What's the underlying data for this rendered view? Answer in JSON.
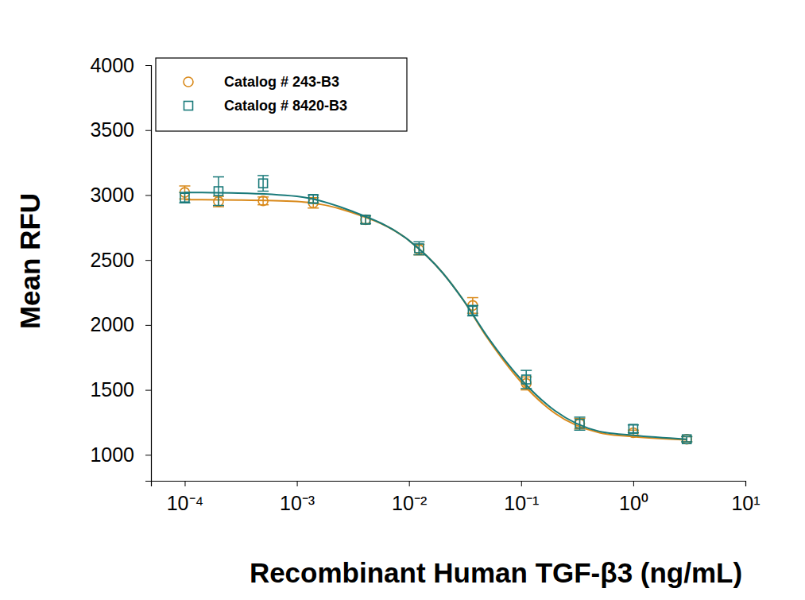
{
  "chart_data": {
    "type": "scatter",
    "x_label": "Recombinant Human TGF-β3 (ng/mL)",
    "y_label": "Mean RFU",
    "log": "x",
    "legend": "top-left",
    "x": [
      0.0001,
      0.0002,
      0.0005,
      0.0014,
      0.0041,
      0.0123,
      0.037,
      0.111,
      0.333,
      1,
      3
    ],
    "xlim": [
      5e-05,
      10
    ],
    "xticks": [
      {
        "value": 0.0001,
        "label": "10⁻⁴"
      },
      {
        "value": 0.001,
        "label": "10⁻³"
      },
      {
        "value": 0.01,
        "label": "10⁻²"
      },
      {
        "value": 0.1,
        "label": "10⁻¹"
      },
      {
        "value": 1,
        "label": "10⁰"
      },
      {
        "value": 10,
        "label": "10¹"
      }
    ],
    "ylim": [
      800,
      4000
    ],
    "yticks": [
      1000,
      1500,
      2000,
      2500,
      3000,
      3500,
      4000
    ],
    "series": [
      {
        "name": "Catalog # 243-B3",
        "color": "#d98a1c",
        "marker": "circle",
        "values": [
          3020,
          2950,
          2955,
          2940,
          2810,
          2580,
          2150,
          1550,
          1240,
          1170,
          1120
        ],
        "error": [
          50,
          40,
          30,
          40,
          30,
          40,
          60,
          50,
          40,
          20,
          20
        ],
        "fit": {
          "x": [
            0.0001,
            0.0003,
            0.001,
            0.003,
            0.01,
            0.02,
            0.03,
            0.05,
            0.1,
            0.2,
            0.5,
            1,
            3
          ],
          "values": [
            2965,
            2962,
            2950,
            2870,
            2650,
            2400,
            2200,
            1900,
            1560,
            1320,
            1170,
            1140,
            1115
          ]
        }
      },
      {
        "name": "Catalog # 8420-B3",
        "color": "#1a7a7a",
        "marker": "square",
        "values": [
          2980,
          3030,
          3090,
          2970,
          2810,
          2590,
          2110,
          1580,
          1240,
          1200,
          1120
        ],
        "error": [
          40,
          110,
          60,
          30,
          30,
          50,
          40,
          70,
          50,
          30,
          20
        ],
        "fit": {
          "x": [
            0.0001,
            0.0003,
            0.001,
            0.003,
            0.01,
            0.02,
            0.03,
            0.05,
            0.1,
            0.2,
            0.5,
            1,
            3
          ],
          "values": [
            3020,
            3015,
            2990,
            2880,
            2650,
            2400,
            2200,
            1910,
            1580,
            1340,
            1180,
            1150,
            1120
          ]
        }
      }
    ]
  }
}
